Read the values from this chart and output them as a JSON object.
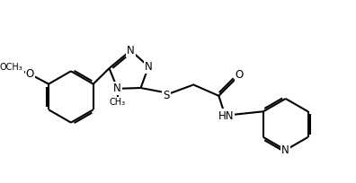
{
  "background": "#ffffff",
  "bond_color": "#000000",
  "bond_width": 1.5,
  "font_size": 8.5,
  "figsize": [
    3.96,
    2.04
  ],
  "dpi": 100,
  "xlim": [
    0,
    9.5
  ],
  "ylim": [
    0,
    4.8
  ]
}
